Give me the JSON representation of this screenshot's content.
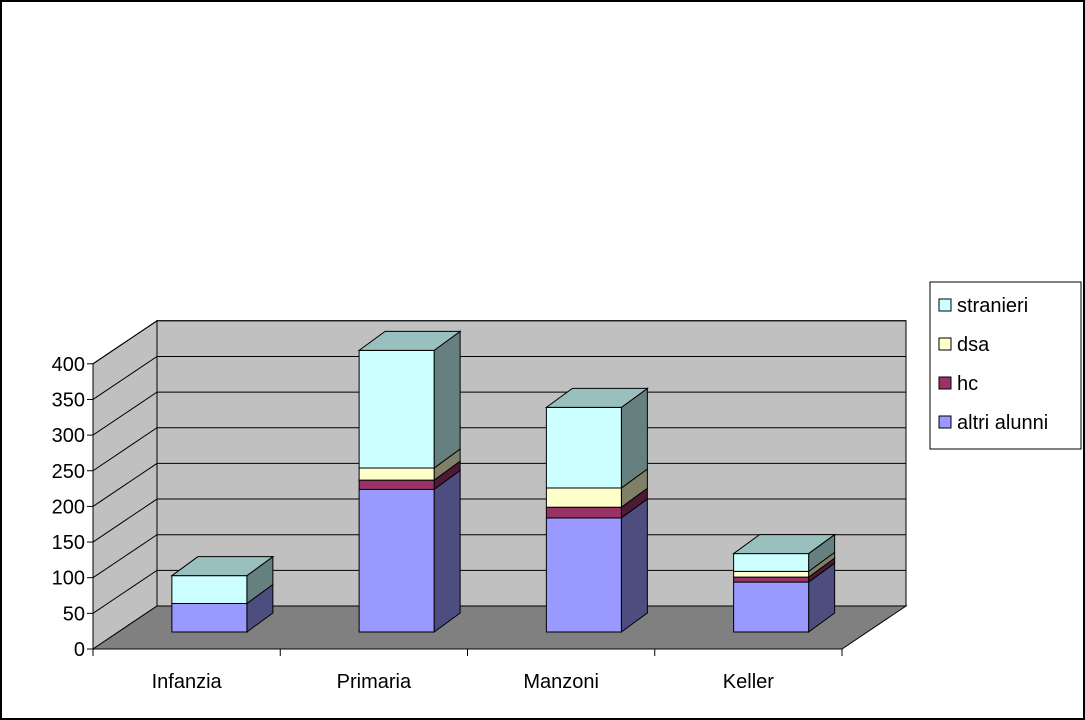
{
  "chart_data": {
    "type": "bar",
    "stacked": true,
    "style": "3d",
    "categories": [
      "Infanzia",
      "Primaria",
      "Manzoni",
      "Keller"
    ],
    "series": [
      {
        "name": "altri alunni",
        "values": [
          40,
          200,
          160,
          70
        ],
        "color": "#9999ff"
      },
      {
        "name": "hc",
        "values": [
          0,
          13,
          15,
          7
        ],
        "color": "#993366"
      },
      {
        "name": "dsa",
        "values": [
          0,
          17,
          27,
          8
        ],
        "color": "#ffffcc"
      },
      {
        "name": "stranieri",
        "values": [
          39,
          165,
          113,
          25
        ],
        "color": "#ccffff"
      }
    ],
    "yticks": [
      "0",
      "50",
      "100",
      "150",
      "200",
      "250",
      "300",
      "350",
      "400"
    ],
    "ylim": [
      0,
      400
    ],
    "grid": true,
    "legend": "right",
    "colors": {
      "wall": "#c0c0c0",
      "floor": "#808080",
      "gridline": "#000000"
    }
  }
}
